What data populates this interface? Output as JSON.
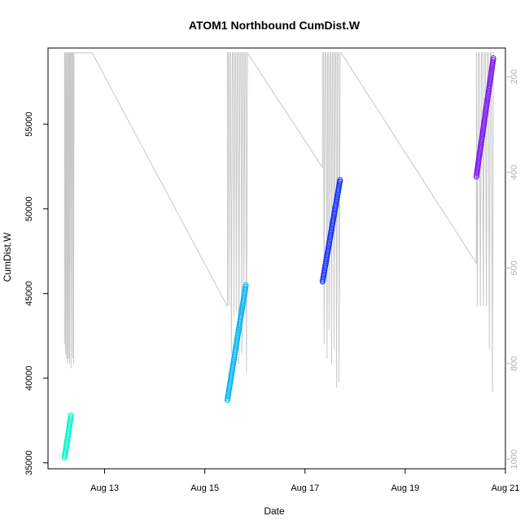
{
  "chart_data": {
    "type": "scatter",
    "title": "ATOM1 Northbound CumDist.W",
    "xlabel": "Date",
    "ylabel": "CumDist.W",
    "x_ticks": [
      "Aug 13",
      "Aug 15",
      "Aug 17",
      "Aug 19",
      "Aug 21"
    ],
    "x_tick_days": [
      13,
      15,
      17,
      19,
      21
    ],
    "xlim_days": [
      11.87,
      21.0
    ],
    "y_ticks": [
      35000,
      40000,
      45000,
      50000,
      55000
    ],
    "ylim": [
      34650,
      59500
    ],
    "y2_ticks": [
      200,
      400,
      600,
      800,
      1000
    ],
    "y2lim": [
      1020,
      140
    ],
    "series": [
      {
        "color": "#00f5c8",
        "x_days": [
          12.2,
          12.33
        ],
        "y": [
          35300,
          37800
        ],
        "n_points": 28
      },
      {
        "color": "#00b4f5",
        "x_days": [
          15.45,
          15.82
        ],
        "y": [
          38700,
          45500
        ],
        "n_points": 70
      },
      {
        "color": "#1432f5",
        "x_days": [
          17.35,
          17.7
        ],
        "y": [
          45700,
          51700
        ],
        "n_points": 70
      },
      {
        "color": "#7814f0",
        "x_days": [
          20.42,
          20.76
        ],
        "y": [
          51900,
          58900
        ],
        "n_points": 70
      }
    ],
    "secondary_line": {
      "color": "#c8c8c8",
      "x_days": [
        12.2,
        12.2,
        12.21,
        12.22,
        12.22,
        12.23,
        12.24,
        12.25,
        12.25,
        12.26,
        12.27,
        12.28,
        12.28,
        12.29,
        12.3,
        12.3,
        12.31,
        12.32,
        12.33,
        12.34,
        12.35,
        12.36,
        12.36,
        12.37,
        12.38,
        12.39,
        12.39,
        12.4,
        12.75,
        15.45,
        15.45,
        15.47,
        15.48,
        15.5,
        15.51,
        15.53,
        15.55,
        15.57,
        15.58,
        15.6,
        15.62,
        15.63,
        15.65,
        15.67,
        15.68,
        15.7,
        15.72,
        15.74,
        15.75,
        15.77,
        15.78,
        15.8,
        15.82,
        15.83,
        15.85,
        17.35,
        17.35,
        17.37,
        17.38,
        17.4,
        17.42,
        17.44,
        17.45,
        17.47,
        17.48,
        17.5,
        17.52,
        17.53,
        17.55,
        17.57,
        17.58,
        17.6,
        17.62,
        17.63,
        17.65,
        17.67,
        17.68,
        17.7,
        17.72,
        20.42,
        20.42,
        20.44,
        20.46,
        20.48,
        20.5,
        20.52,
        20.54,
        20.56,
        20.58,
        20.6,
        20.62,
        20.64,
        20.66,
        20.68,
        20.7,
        20.72,
        20.74,
        20.76,
        20.78
      ],
      "y": [
        760,
        150,
        150,
        780,
        150,
        150,
        790,
        150,
        150,
        800,
        150,
        150,
        790,
        150,
        150,
        800,
        150,
        150,
        810,
        150,
        150,
        790,
        150,
        150,
        800,
        150,
        150,
        150,
        150,
        680,
        150,
        150,
        680,
        150,
        150,
        780,
        150,
        150,
        700,
        150,
        150,
        690,
        150,
        150,
        800,
        150,
        150,
        780,
        150,
        150,
        650,
        150,
        150,
        820,
        150,
        390,
        150,
        150,
        760,
        150,
        150,
        790,
        150,
        150,
        730,
        150,
        150,
        800,
        150,
        150,
        770,
        150,
        150,
        850,
        150,
        150,
        840,
        150,
        150,
        590,
        150,
        680,
        150,
        150,
        680,
        150,
        150,
        680,
        150,
        150,
        680,
        150,
        150,
        770,
        150,
        150,
        860,
        150,
        150
      ]
    }
  }
}
